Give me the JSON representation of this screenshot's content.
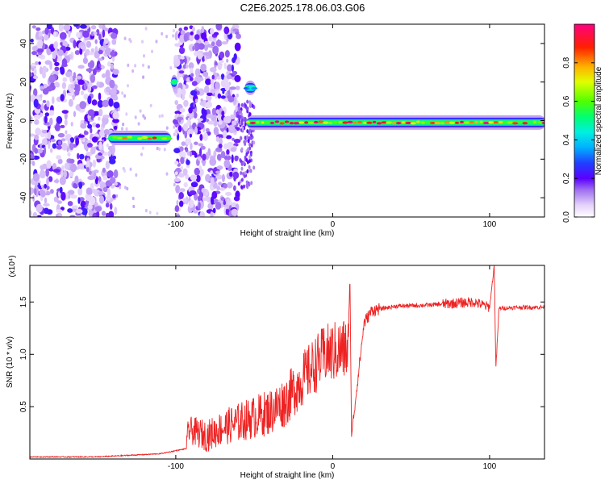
{
  "title": "C2E6.2025.178.06.03.G06",
  "chart_data": [
    {
      "type": "heatmap",
      "xlabel": "Height of straight line (km)",
      "ylabel": "Frequency (Hz)",
      "xlim": [
        -193,
        135
      ],
      "ylim": [
        -50,
        50
      ],
      "xticks": [
        -100,
        0,
        100
      ],
      "yticks": [
        -40,
        -20,
        0,
        20,
        40
      ],
      "colorbar": {
        "label": "Normalized spectral amplitude",
        "range": [
          0,
          1
        ],
        "ticks": [
          "0.0",
          "0.2",
          "0.4",
          "0.6",
          "0.8"
        ],
        "colormap": [
          "#ffffff",
          "#d8b8f8",
          "#8a2be2",
          "#3b00ff",
          "#0050ff",
          "#00d8ff",
          "#00ff80",
          "#60ff00",
          "#ffff00",
          "#ff8000",
          "#ff0000",
          "#ff00a0"
        ]
      },
      "noise_regions_x": [
        [
          -193,
          -137
        ],
        [
          -100,
          -60
        ]
      ],
      "ridge": {
        "description_free": true,
        "segments": [
          {
            "x": [
              -142,
              -104
            ],
            "freq": -9,
            "peak": 0.9
          },
          {
            "x": [
              -102,
              -100
            ],
            "freq": 20,
            "peak": 0.6
          },
          {
            "x": [
              -55,
              -50
            ],
            "freq": 17,
            "peak": 0.5
          },
          {
            "x": [
              -54,
              135
            ],
            "freq": -1,
            "peak": 1.0
          }
        ]
      }
    },
    {
      "type": "line",
      "xlabel": "Height of straight line (km)",
      "ylabel": "SNR (10 * v/v)",
      "y_multiplier": "(x10⁴)",
      "xlim": [
        -193,
        135
      ],
      "ylim": [
        0,
        1.85
      ],
      "xticks": [
        -100,
        0,
        100
      ],
      "yticks": [
        "0.5",
        "1.0",
        "1.5"
      ],
      "color": "#ee2222",
      "x": [
        -193,
        -150,
        -110,
        -93,
        -92,
        -80,
        -70,
        -60,
        -50,
        -40,
        -30,
        -20,
        -10,
        -5,
        10,
        11,
        12,
        20,
        25,
        40,
        60,
        80,
        90,
        100,
        103,
        104,
        106,
        120,
        135
      ],
      "y": [
        0.02,
        0.02,
        0.05,
        0.1,
        0.28,
        0.22,
        0.3,
        0.35,
        0.4,
        0.45,
        0.55,
        0.75,
        0.92,
        1.0,
        1.05,
        1.78,
        0.22,
        1.3,
        1.42,
        1.46,
        1.47,
        1.49,
        1.5,
        1.45,
        1.85,
        0.86,
        1.44,
        1.45,
        1.45
      ]
    }
  ]
}
